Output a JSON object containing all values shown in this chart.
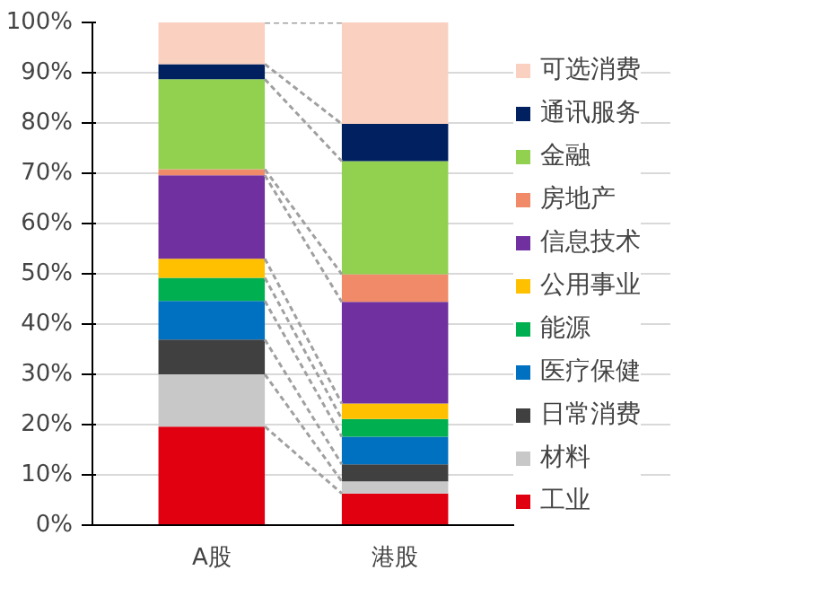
{
  "chart_data": {
    "type": "bar",
    "stacked": true,
    "categories": [
      "A股",
      "港股"
    ],
    "ylim": [
      0,
      100
    ],
    "yticks": [
      {
        "value": 0,
        "label": "0%"
      },
      {
        "value": 10,
        "label": "10%"
      },
      {
        "value": 20,
        "label": "20%"
      },
      {
        "value": 30,
        "label": "30%"
      },
      {
        "value": 40,
        "label": "40%"
      },
      {
        "value": 50,
        "label": "50%"
      },
      {
        "value": 60,
        "label": "60%"
      },
      {
        "value": 70,
        "label": "70%"
      },
      {
        "value": 80,
        "label": "80%"
      },
      {
        "value": 90,
        "label": "90%"
      },
      {
        "value": 100,
        "label": "100%"
      }
    ],
    "grid": "y",
    "legend": "right",
    "series": [
      {
        "name": "工业",
        "color": "#e00010",
        "values": [
          19.6,
          6.3
        ]
      },
      {
        "name": "材料",
        "color": "#c8c8c8",
        "values": [
          10.4,
          2.4
        ]
      },
      {
        "name": "日常消费",
        "color": "#404040",
        "values": [
          6.9,
          3.4
        ]
      },
      {
        "name": "医疗保健",
        "color": "#0070c0",
        "values": [
          7.7,
          5.5
        ]
      },
      {
        "name": "能源",
        "color": "#00b050",
        "values": [
          4.6,
          3.5
        ]
      },
      {
        "name": "公用事业",
        "color": "#ffc000",
        "values": [
          3.8,
          3.1
        ]
      },
      {
        "name": "信息技术",
        "color": "#7030a0",
        "values": [
          16.6,
          20.2
        ]
      },
      {
        "name": "房地产",
        "color": "#f08a68",
        "values": [
          1.2,
          5.5
        ]
      },
      {
        "name": "金融",
        "color": "#92d050",
        "values": [
          17.9,
          22.5
        ]
      },
      {
        "name": "通讯服务",
        "color": "#002060",
        "values": [
          3.0,
          7.4
        ]
      },
      {
        "name": "可选消费",
        "color": "#fad0c0",
        "values": [
          8.3,
          20.2
        ]
      }
    ]
  }
}
